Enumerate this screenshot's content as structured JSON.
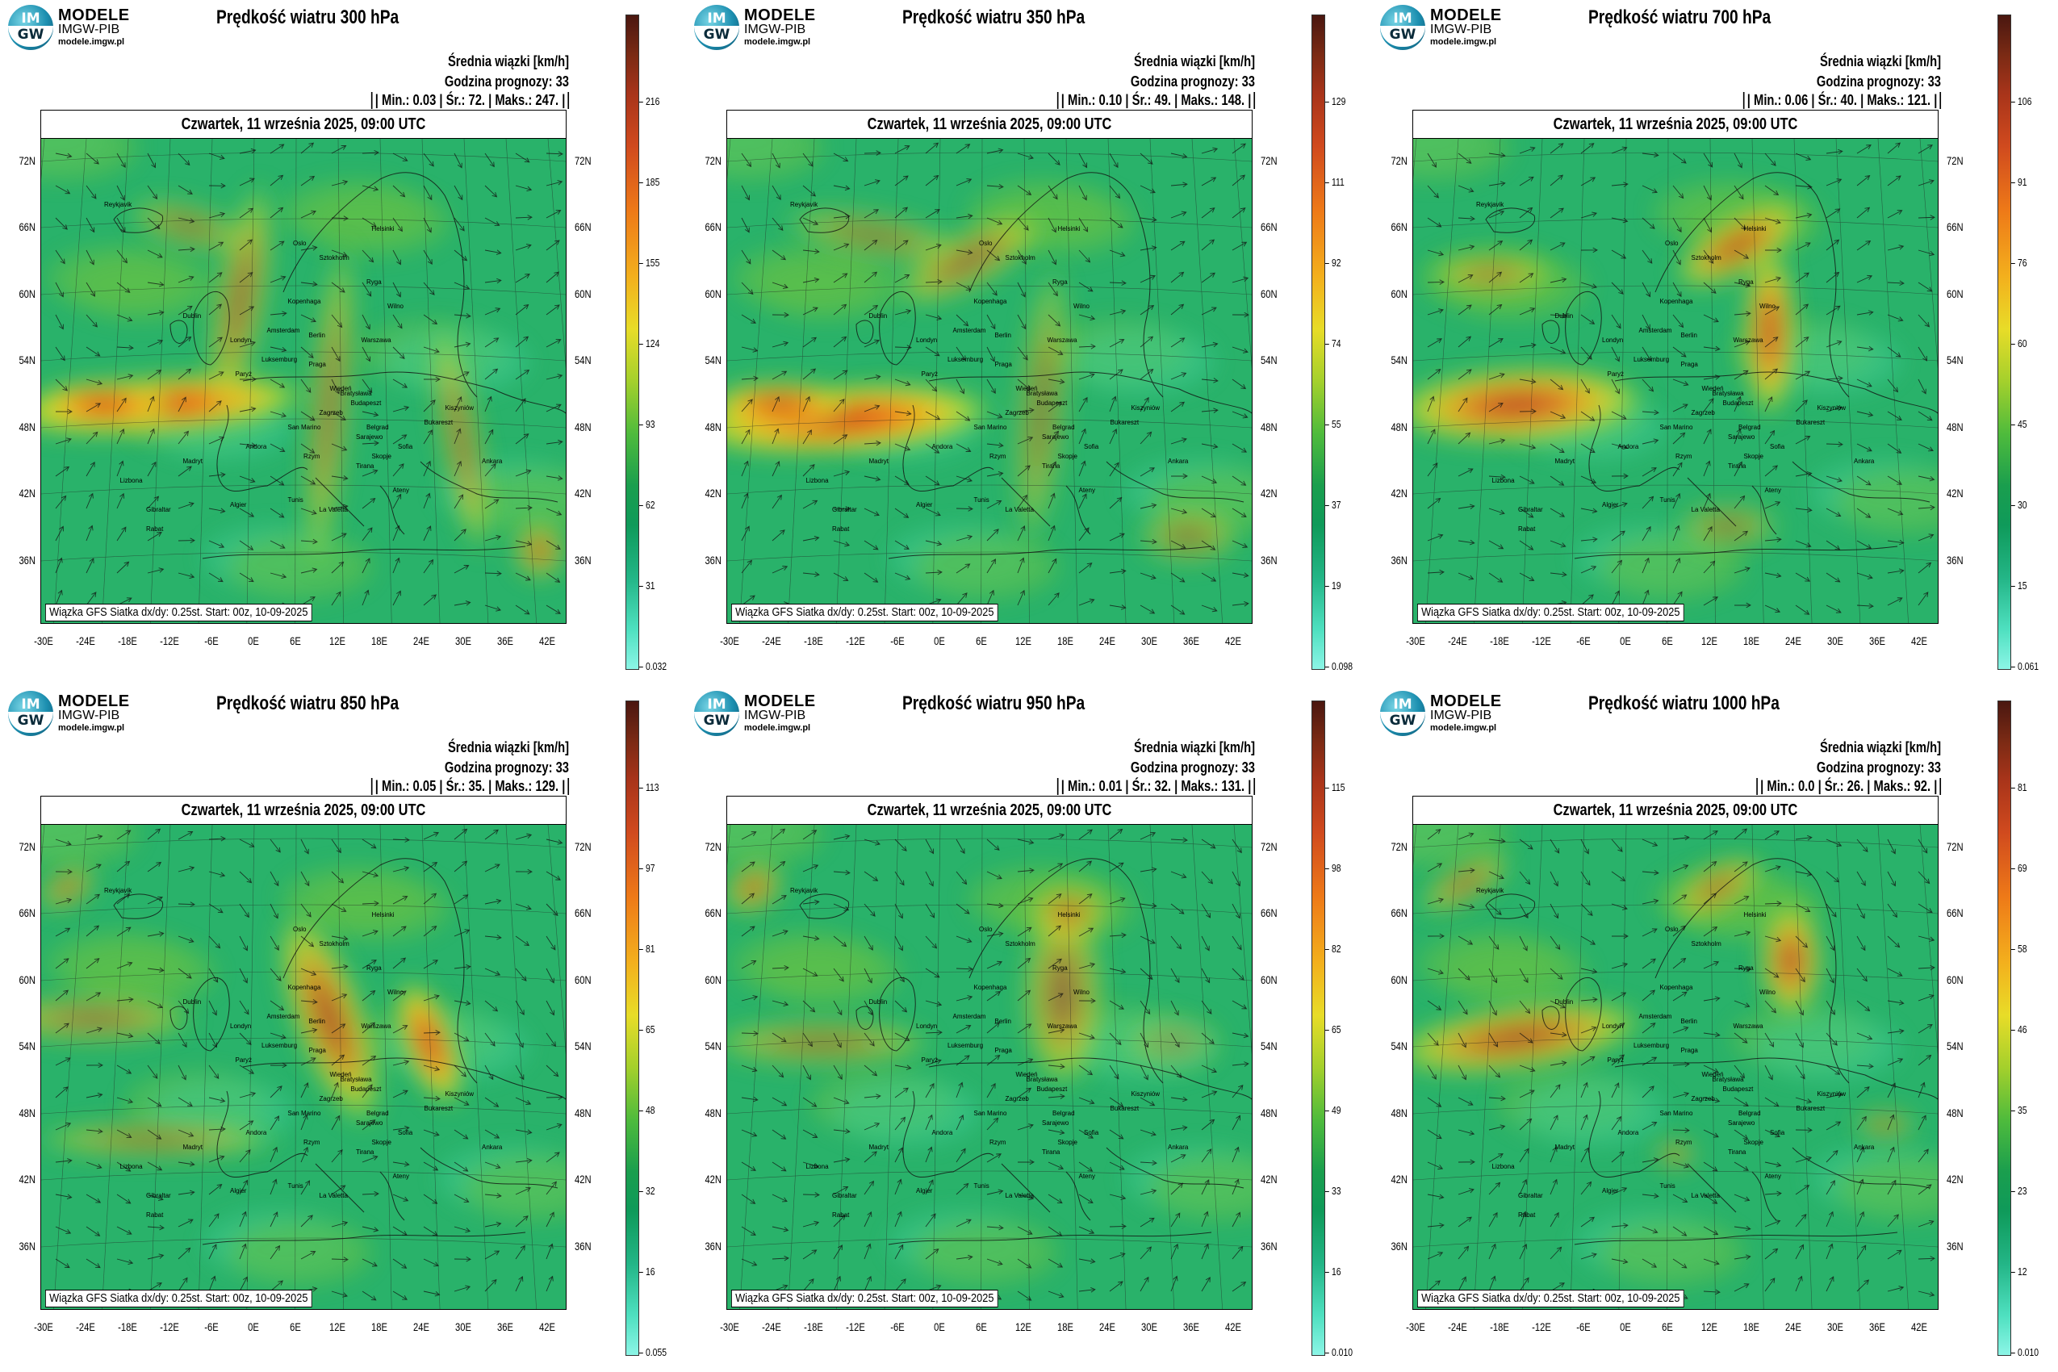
{
  "common": {
    "logo": {
      "globe_top": "IM",
      "globe_bottom": "GW",
      "line1": "MODELE",
      "line2": "IMGW-PIB",
      "line3": "modele.imgw.pl"
    },
    "srednia": "Średnia wiązki [km/h]",
    "godzina": "Godzina prognozy: 33",
    "date": "Czwartek, 11 września 2025, 09:00 UTC",
    "footer": "Wiązka GFS Siatka dx/dy: 0.25st. Start: 00z, 10-09-2025",
    "lat_labels": [
      "72N",
      "66N",
      "60N",
      "54N",
      "48N",
      "42N",
      "36N"
    ],
    "lon_labels": [
      "-30E",
      "-24E",
      "-18E",
      "-12E",
      "-6E",
      "0E",
      "6E",
      "12E",
      "18E",
      "24E",
      "30E",
      "36E",
      "42E"
    ],
    "city_labels": [
      "Helsinki",
      "Oslo",
      "Sztokholm",
      "Ryga",
      "Kopenhaga",
      "Wilno",
      "Londyn",
      "Amsterdam",
      "Berlin",
      "Warszawa",
      "Praga",
      "Luksemburg",
      "Paryż",
      "Wiedeń",
      "Bratysława",
      "Budapeszt",
      "Zagrzeb",
      "Belgrad",
      "Sarajewo",
      "Bukareszt",
      "Kiszyniów",
      "Sofia",
      "Skopje",
      "Tirana",
      "Ateny",
      "Ankara",
      "Rzym",
      "San Marino",
      "Andora",
      "Madryt",
      "Lizbona",
      "Gibraltar",
      "Algier",
      "Tunis",
      "La Valetta",
      "Rabat",
      "Dublin",
      "Reykjavik"
    ]
  },
  "panels": [
    {
      "title": "Prędkość wiatru 300 hPa",
      "stats": "| Min.: 0.03 | Śr.: 72. | Maks.: 247. |",
      "colorbar": [
        "216",
        "185",
        "155",
        "124",
        "93",
        "62",
        "31",
        "0.032"
      ]
    },
    {
      "title": "Prędkość wiatru 350 hPa",
      "stats": "| Min.: 0.10 | Śr.: 49. | Maks.: 148. |",
      "colorbar": [
        "129",
        "111",
        "92",
        "74",
        "55",
        "37",
        "19",
        "0.098"
      ]
    },
    {
      "title": "Prędkość wiatru 700 hPa",
      "stats": "| Min.: 0.06 | Śr.: 40. | Maks.: 121. |",
      "colorbar": [
        "106",
        "91",
        "76",
        "60",
        "45",
        "30",
        "15",
        "0.061"
      ]
    },
    {
      "title": "Prędkość wiatru 850 hPa",
      "stats": "| Min.: 0.05 | Śr.: 35. | Maks.: 129. |",
      "colorbar": [
        "113",
        "97",
        "81",
        "65",
        "48",
        "32",
        "16",
        "0.055"
      ]
    },
    {
      "title": "Prędkość wiatru 950 hPa",
      "stats": "| Min.: 0.01 | Śr.: 32. | Maks.: 131. |",
      "colorbar": [
        "115",
        "98",
        "82",
        "65",
        "49",
        "33",
        "16",
        "0.010"
      ]
    },
    {
      "title": "Prędkość wiatru 1000 hPa",
      "stats": "| Min.: 0.0 | Śr.: 26. | Maks.: 92. |",
      "colorbar": [
        "81",
        "69",
        "58",
        "46",
        "35",
        "23",
        "12",
        "0.010"
      ]
    }
  ]
}
